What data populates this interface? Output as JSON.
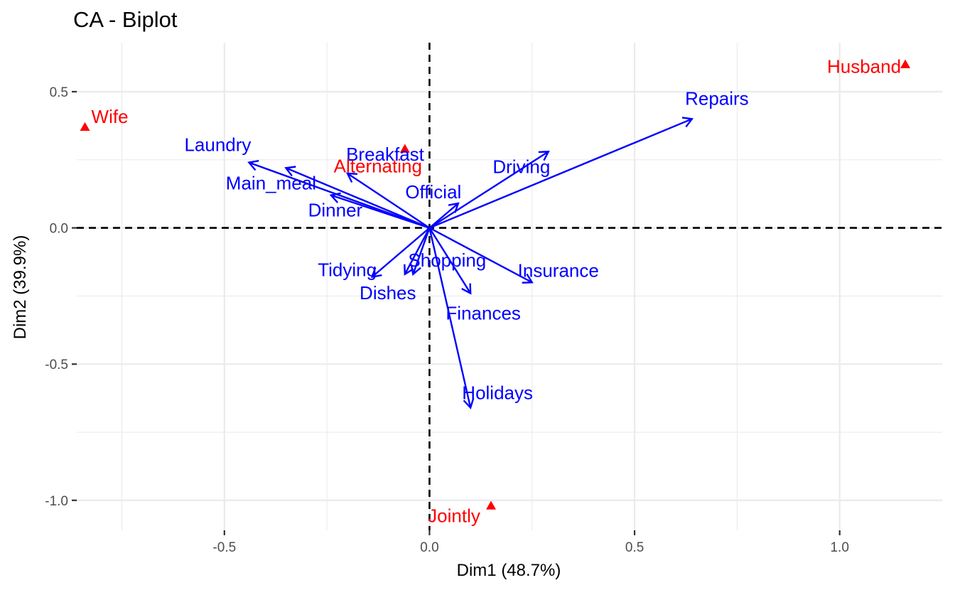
{
  "chart_data": {
    "type": "scatter",
    "title": "CA - Biplot",
    "xlabel": "Dim1 (48.7%)",
    "ylabel": "Dim2 (39.9%)",
    "xlim": [
      -0.86,
      1.25
    ],
    "ylim": [
      -1.11,
      0.68
    ],
    "x_ticks": [
      -0.5,
      0.0,
      0.5,
      1.0
    ],
    "x_tick_labels": [
      "-0.5",
      "0.0",
      "0.5",
      "1.0"
    ],
    "y_ticks": [
      -1.0,
      -0.5,
      0.0,
      0.5
    ],
    "y_tick_labels": [
      "-1.0",
      "-0.5",
      "0.0",
      "0.5"
    ],
    "x_minor_ticks": [
      -0.75,
      -0.25,
      0.25,
      0.75
    ],
    "y_minor_ticks": [
      -0.75,
      -0.25,
      0.25
    ],
    "grid": true,
    "reference_lines": {
      "x": 0,
      "y": 0
    },
    "colors": {
      "row_points": "#FF0000",
      "column_arrows": "#0000FF"
    },
    "series": [
      {
        "marker": "triangle",
        "color": "#FF0000",
        "points": [
          {
            "label": "Wife",
            "x": -0.84,
            "y": 0.37
          },
          {
            "label": "Alternating",
            "x": -0.06,
            "y": 0.29
          },
          {
            "label": "Husband",
            "x": 1.16,
            "y": 0.6
          },
          {
            "label": "Jointly",
            "x": 0.15,
            "y": -1.02
          }
        ]
      },
      {
        "marker": "arrow",
        "color": "#0000FF",
        "points": [
          {
            "label": "Laundry",
            "x": -0.44,
            "y": 0.24
          },
          {
            "label": "Main_meal",
            "x": -0.35,
            "y": 0.22
          },
          {
            "label": "Dinner",
            "x": -0.24,
            "y": 0.12
          },
          {
            "label": "Breakfast",
            "x": -0.2,
            "y": 0.2
          },
          {
            "label": "Tidying",
            "x": -0.14,
            "y": -0.18
          },
          {
            "label": "Dishes",
            "x": -0.06,
            "y": -0.17
          },
          {
            "label": "Shopping",
            "x": -0.04,
            "y": -0.17
          },
          {
            "label": "Official",
            "x": 0.07,
            "y": 0.09
          },
          {
            "label": "Driving",
            "x": 0.29,
            "y": 0.28
          },
          {
            "label": "Finances",
            "x": 0.1,
            "y": -0.24
          },
          {
            "label": "Insurance",
            "x": 0.25,
            "y": -0.2
          },
          {
            "label": "Repairs",
            "x": 0.64,
            "y": 0.4
          },
          {
            "label": "Holidays",
            "x": 0.1,
            "y": -0.66
          }
        ]
      }
    ]
  }
}
